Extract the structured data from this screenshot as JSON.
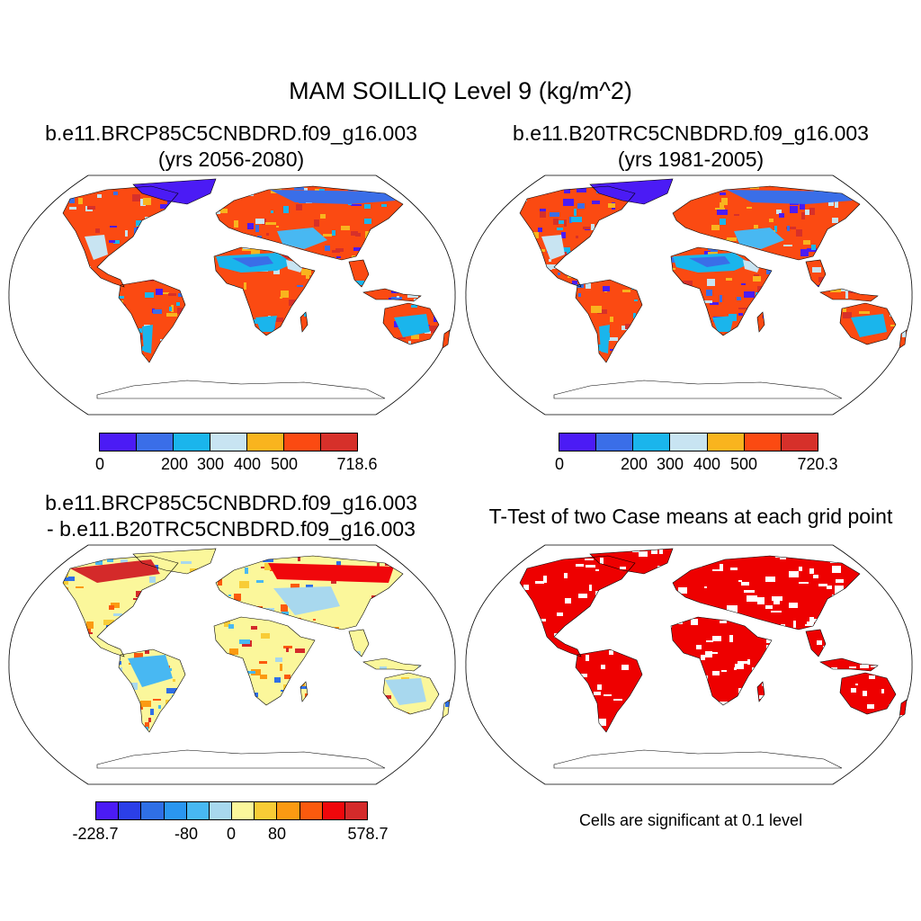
{
  "title": "MAM SOILLIQ Level 9 (kg/m^2)",
  "panels": [
    {
      "title_line1": "b.e11.BRCP85C5CNBDRD.f09_g16.003",
      "title_line2": "(yrs 2056-2080)",
      "colorbar": {
        "colors": [
          "#4b1bf5",
          "#3a6ee8",
          "#1ab5ec",
          "#c8e4f2",
          "#f9b41e",
          "#fb4a12",
          "#d6302a"
        ],
        "tick_labels": [
          "0",
          "200",
          "300",
          "400",
          "500",
          "718.6"
        ]
      }
    },
    {
      "title_line1": "b.e11.B20TRC5CNBDRD.f09_g16.003",
      "title_line2": "(yrs 1981-2005)",
      "colorbar": {
        "colors": [
          "#4b1bf5",
          "#3a6ee8",
          "#1ab5ec",
          "#c8e4f2",
          "#f9b41e",
          "#fb4a12",
          "#d6302a"
        ],
        "tick_labels": [
          "0",
          "200",
          "300",
          "400",
          "500",
          "720.3"
        ]
      }
    },
    {
      "title_line1": "b.e11.BRCP85C5CNBDRD.f09_g16.003",
      "title_line2": "- b.e11.B20TRC5CNBDRD.f09_g16.003",
      "colorbar": {
        "colors": [
          "#4b1bf5",
          "#2b3fe8",
          "#2f6fe6",
          "#2a96f0",
          "#48b8f2",
          "#a8d8ee",
          "#fbf79b",
          "#f8cc36",
          "#fb9a12",
          "#fb5a0e",
          "#f0070b",
          "#d42a2a"
        ],
        "tick_labels": [
          "-228.7",
          "-80",
          "0",
          "80",
          "578.7"
        ]
      }
    },
    {
      "title_line1": "T-Test of two Case means at each grid point",
      "note": "Cells are significant at 0.1 level",
      "fill_color": "#ee0000"
    }
  ]
}
